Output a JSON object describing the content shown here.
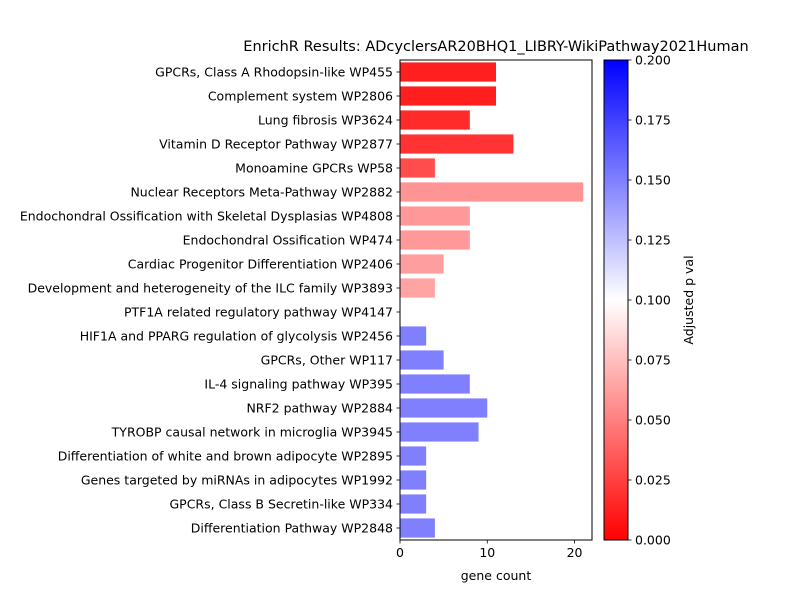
{
  "chart_data": {
    "type": "bar",
    "orientation": "horizontal",
    "title": "EnrichR Results: ADcyclersAR20BHQ1_LIBRY-WikiPathway2021Human",
    "xlabel": "gene count",
    "ylabel": "",
    "xlim": [
      0,
      22
    ],
    "x_ticks": [
      0,
      10,
      20
    ],
    "grid": false,
    "categories": [
      "GPCRs, Class A Rhodopsin-like WP455",
      "Complement system WP2806",
      "Lung fibrosis WP3624",
      "Vitamin D Receptor Pathway WP2877",
      "Monoamine GPCRs WP58",
      "Nuclear Receptors Meta-Pathway WP2882",
      "Endochondral Ossification with Skeletal Dysplasias WP4808",
      "Endochondral Ossification WP474",
      "Cardiac Progenitor Differentiation WP2406",
      "Development and heterogeneity of the ILC family WP3893",
      "PTF1A related regulatory pathway WP4147",
      "HIF1A and PPARG regulation of glycolysis WP2456",
      "GPCRs, Other WP117",
      "IL-4 signaling pathway WP395",
      "NRF2 pathway WP2884",
      "TYROBP causal network in microglia WP3945",
      "Differentiation of white and brown adipocyte WP2895",
      "Genes targeted by miRNAs in adipocytes WP1992",
      "GPCRs, Class B Secretin-like WP334",
      "Differentiation Pathway WP2848"
    ],
    "values": [
      11,
      11,
      8,
      13,
      4,
      21,
      8,
      8,
      5,
      4,
      0,
      3,
      5,
      8,
      10,
      9,
      3,
      3,
      3,
      4
    ],
    "adjusted_p": [
      0.012,
      0.012,
      0.017,
      0.02,
      0.03,
      0.058,
      0.06,
      0.06,
      0.062,
      0.064,
      0.15,
      0.15,
      0.15,
      0.15,
      0.15,
      0.15,
      0.15,
      0.15,
      0.15,
      0.15
    ],
    "colorbar": {
      "label": "Adjusted p val",
      "range": [
        0,
        0.2
      ],
      "ticks": [
        "0.000",
        "0.025",
        "0.050",
        "0.075",
        "0.100",
        "0.125",
        "0.150",
        "0.175",
        "0.200"
      ],
      "colors": {
        "low": "#ff0000",
        "mid": "#ffffff",
        "high": "#0000ff"
      }
    }
  }
}
